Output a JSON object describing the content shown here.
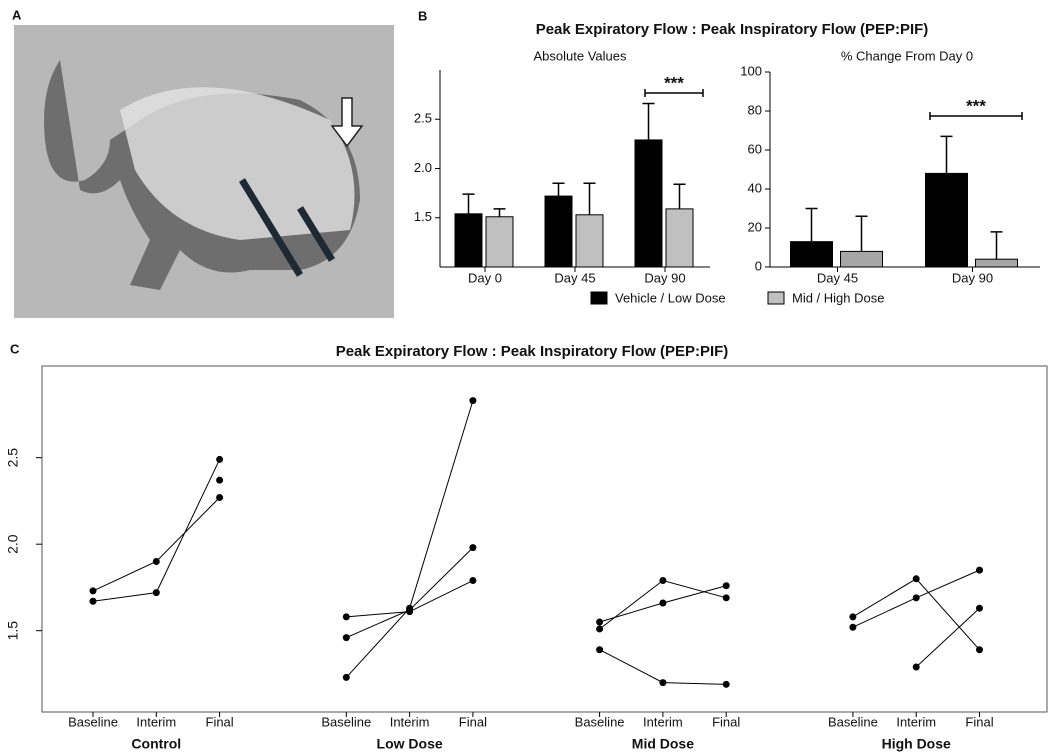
{
  "panel_labels": [
    "A",
    "B",
    "C"
  ],
  "figure_title": "Peak Expiratory Flow : Peak Inspiratory Flow (PEP:PIF)",
  "chart_data": [
    {
      "type": "bar",
      "subtitle": "Absolute Values",
      "categories": [
        "Day 0",
        "Day 45",
        "Day 90"
      ],
      "series": [
        {
          "name": "Vehicle / Low Dose",
          "color": "#000000",
          "values": [
            1.54,
            1.72,
            2.29
          ],
          "errors": [
            0.2,
            0.13,
            0.37
          ]
        },
        {
          "name": "Mid / High Dose",
          "color": "#c0c0c0",
          "values": [
            1.51,
            1.53,
            1.59
          ],
          "errors": [
            0.08,
            0.32,
            0.25
          ]
        }
      ],
      "ylim": [
        1.0,
        3.0
      ],
      "yticks": [
        1.5,
        {
          "value": 2,
          "label": "2.0"
        },
        2.5
      ],
      "annotation": "***"
    },
    {
      "type": "bar",
      "subtitle": "% Change From Day 0",
      "categories": [
        "Day 45",
        "Day 90"
      ],
      "series": [
        {
          "color": "#000000",
          "values": [
            13,
            48
          ],
          "errors": [
            17,
            19
          ]
        },
        {
          "color": "#a6a6a6",
          "values": [
            8,
            4
          ],
          "errors": [
            18,
            14
          ]
        }
      ],
      "ylim": [
        0,
        100
      ],
      "yticks": [
        0,
        20,
        40,
        60,
        80,
        100
      ],
      "annotation": "***"
    },
    {
      "type": "line",
      "title": "Peak Expiratory Flow : Peak Inspiratory Flow (PEP:PIF)",
      "categories": [
        "Baseline",
        "Interim",
        "Final"
      ],
      "groups": [
        {
          "name": "Control",
          "subjects": [
            [
              1.73,
              1.9,
              2.27
            ],
            [
              1.67,
              1.72,
              2.49
            ],
            [
              null,
              null,
              2.37
            ]
          ]
        },
        {
          "name": "Low Dose",
          "subjects": [
            [
              1.58,
              1.61,
              1.79
            ],
            [
              1.46,
              1.62,
              1.98
            ],
            [
              1.23,
              1.63,
              2.83
            ]
          ]
        },
        {
          "name": "Mid Dose",
          "subjects": [
            [
              1.51,
              1.79,
              1.69
            ],
            [
              1.55,
              1.66,
              1.76
            ],
            [
              1.39,
              1.2,
              1.19
            ]
          ]
        },
        {
          "name": "High Dose",
          "subjects": [
            [
              1.58,
              1.8,
              1.39
            ],
            [
              1.52,
              1.69,
              1.85
            ],
            [
              null,
              1.29,
              1.63
            ]
          ]
        }
      ],
      "color": "#000000",
      "ylim": [
        1.03,
        3.03
      ],
      "yticks": [
        1.5,
        {
          "value": 2,
          "label": "2.0"
        },
        2.5
      ]
    }
  ]
}
